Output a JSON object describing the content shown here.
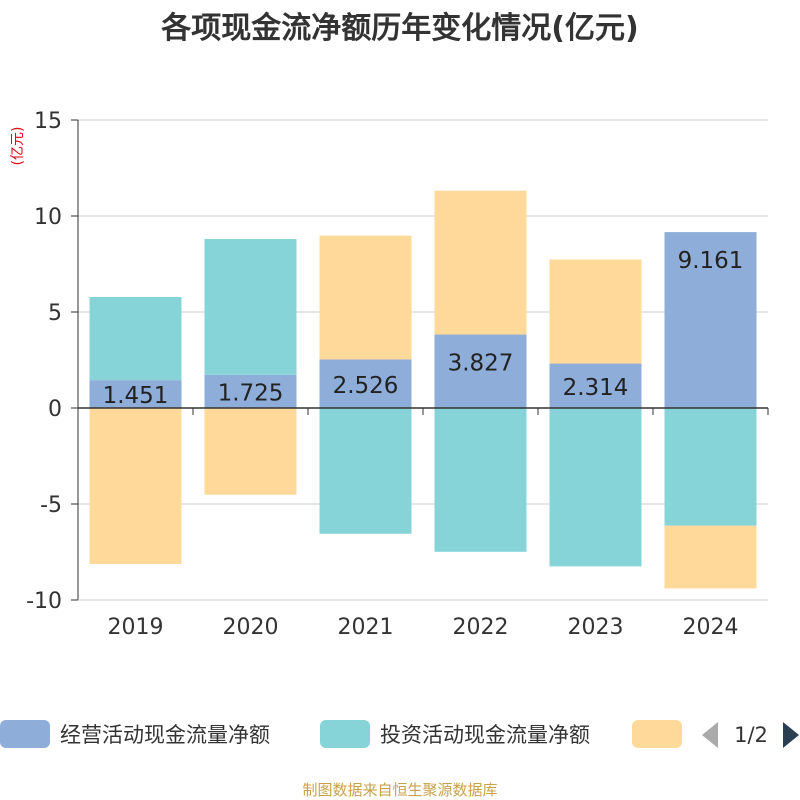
{
  "chart_data": {
    "type": "bar",
    "stacked": true,
    "title": "各项现金流净额历年变化情况(亿元)",
    "ylabel": "(亿元)",
    "categories": [
      "2019",
      "2020",
      "2021",
      "2022",
      "2023",
      "2024"
    ],
    "ylim": [
      -10,
      15
    ],
    "yticks": [
      -10,
      -5,
      0,
      5,
      10,
      15
    ],
    "series": [
      {
        "name": "经营活动现金流量净额",
        "color": "#8eadd9",
        "values": [
          1.451,
          1.725,
          2.526,
          3.827,
          2.314,
          9.161
        ],
        "labels": [
          "1.451",
          "1.725",
          "2.526",
          "3.827",
          "2.314",
          "9.161"
        ]
      },
      {
        "name": "投资活动现金流量净额",
        "color": "#86d4d8",
        "values": [
          4.33,
          7.08,
          -6.55,
          -7.49,
          -8.25,
          -6.13
        ]
      },
      {
        "name": "",
        "color": "#fed99a",
        "values": [
          -8.12,
          -4.52,
          6.45,
          7.49,
          5.42,
          -3.27
        ]
      }
    ],
    "legend_position": "bottom",
    "grid": true
  },
  "legend": {
    "page": "1/2"
  },
  "source": "制图数据来自恒生聚源数据库"
}
